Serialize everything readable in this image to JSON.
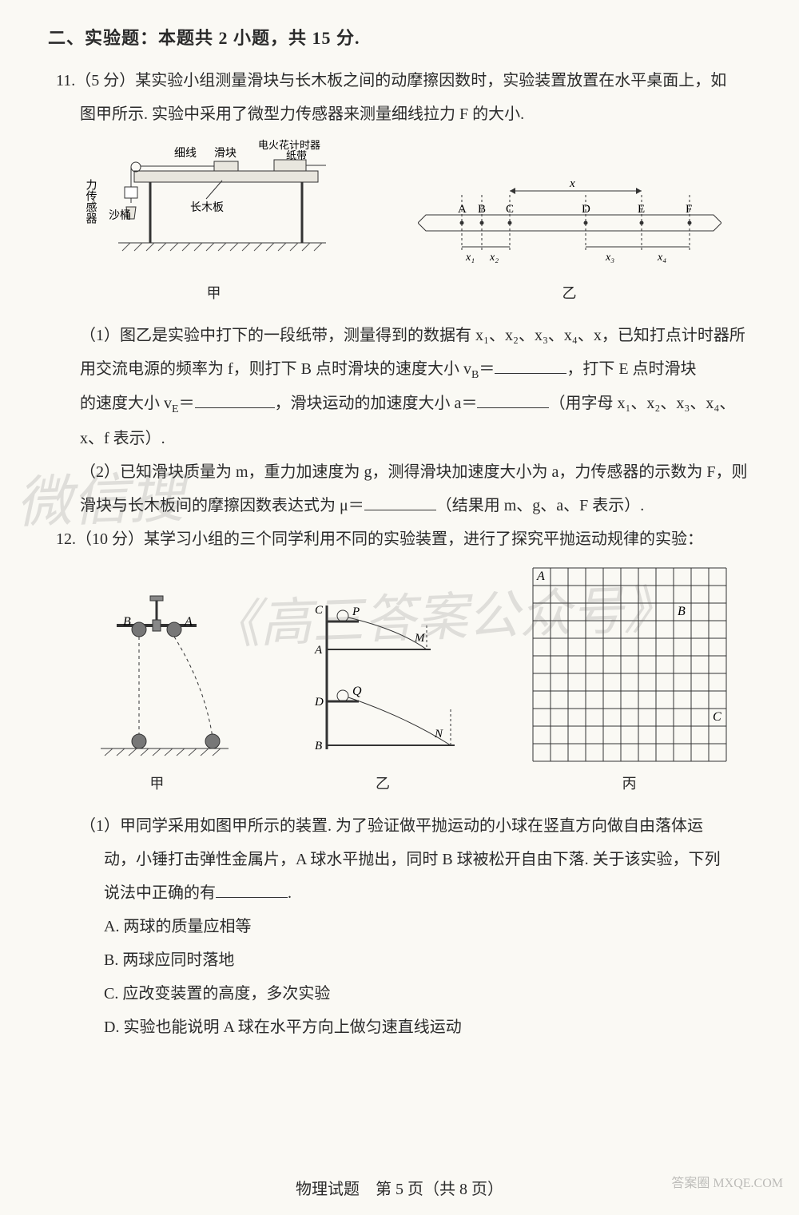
{
  "section": {
    "header": "二、实验题：本题共 2 小题，共 15 分."
  },
  "q11": {
    "stem_a": "11.（5 分）某实验小组测量滑块与长木板之间的动摩擦因数时，实验装置放置在水平桌面上，如",
    "stem_b": "图甲所示. 实验中采用了微型力传感器来测量细线拉力 F 的大小.",
    "fig1": {
      "labels": {
        "sensor": "力传感器",
        "bucket": "沙桶",
        "thread": "细线",
        "slider": "滑块",
        "timer": "电火花计时器",
        "tape": "纸带",
        "board": "长木板",
        "cap": "甲"
      },
      "colors": {
        "line": "#333333",
        "fill": "#e8e6de",
        "hatch": "#555555"
      }
    },
    "fig2": {
      "points": [
        "A",
        "B",
        "C",
        "D",
        "E",
        "F"
      ],
      "seglabels": [
        "x₁",
        "x₂",
        "x",
        "x₃",
        "x₄"
      ],
      "cap": "乙",
      "colors": {
        "line": "#333333"
      }
    },
    "p1_a": "（1）图乙是实验中打下的一段纸带，测量得到的数据有 x₁、x₂、x₃、x₄、x，已知打点计时器所",
    "p1_b": "用交流电源的频率为 f，则打下 B 点时滑块的速度大小 v",
    "p1_b_sub": "B",
    "p1_b_eq": "＝",
    "p1_c": "，打下 E 点时滑块",
    "p1_d": "的速度大小 v",
    "p1_d_sub": "E",
    "p1_d_eq": "＝",
    "p1_e": "，滑块运动的加速度大小 a＝",
    "p1_f": "（用字母 x₁、x₂、x₃、x₄、",
    "p1_g": "x、f 表示）.",
    "p2_a": "（2）已知滑块质量为 m，重力加速度为 g，测得滑块加速度大小为 a，力传感器的示数为 F，则",
    "p2_b": "滑块与长木板间的摩擦因数表达式为 μ＝",
    "p2_c": "（结果用 m、g、a、F 表示）."
  },
  "q12": {
    "stem": "12.（10 分）某学习小组的三个同学利用不同的实验装置，进行了探究平抛运动规律的实验：",
    "fig1": {
      "A": "A",
      "B": "B",
      "cap": "甲",
      "colors": {
        "line": "#333333",
        "ball": "#777777"
      }
    },
    "fig2": {
      "C": "C",
      "P": "P",
      "A": "A",
      "M": "M",
      "D": "D",
      "Q": "Q",
      "B": "B",
      "N": "N",
      "cap": "乙",
      "colors": {
        "line": "#333333"
      }
    },
    "fig3": {
      "A": "A",
      "B": "B",
      "C": "C",
      "cap": "丙",
      "grid": {
        "cols": 11,
        "rows": 11,
        "cell": 22,
        "color": "#333333"
      },
      "marks": {
        "A": [
          0,
          0
        ],
        "B": [
          8,
          2
        ],
        "C": [
          10,
          8
        ]
      }
    },
    "p1_a": "（1）甲同学采用如图甲所示的装置. 为了验证做平抛运动的小球在竖直方向做自由落体运",
    "p1_b": "动，小锤打击弹性金属片，A 球水平抛出，同时 B 球被松开自由下落. 关于该实验，下列",
    "p1_c": "说法中正确的有",
    "p1_d": ".",
    "optA": "A. 两球的质量应相等",
    "optB": "B. 两球应同时落地",
    "optC": "C. 应改变装置的高度，多次实验",
    "optD": "D. 实验也能说明 A 球在水平方向上做匀速直线运动"
  },
  "footer": "物理试题　第 5 页（共 8 页）",
  "watermark1": "微信搜",
  "watermark2": "《高三答案公众号》",
  "corner": "答案圈 MXQE.COM"
}
